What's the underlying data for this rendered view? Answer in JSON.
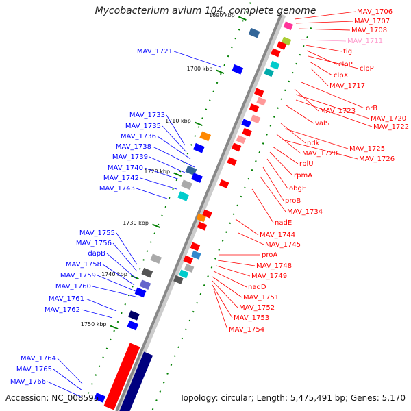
{
  "title": "Mycobacterium avium 104, complete genome",
  "accession_text": "Accession: NC_008595",
  "summary_text": "Topology: circular; Length: 5,475,491 bp; Genes: 5,170",
  "colors": {
    "forward": "#0000ff",
    "reverse": "#ff0000",
    "highlight": "#ff99cc",
    "backbone": "#888888",
    "cds_positive_bar": "#00007f",
    "cds_negative_bar": "#ff0000",
    "tick": "#007f00"
  },
  "ticks": [
    "1690 kbp",
    "1700 kbp",
    "1710 kbp",
    "1720 kbp",
    "1730 kbp",
    "1740 kbp",
    "1750 kbp"
  ],
  "left_labels": [
    "MAV_1721",
    "MAV_1733",
    "MAV_1735",
    "MAV_1736",
    "MAV_1738",
    "MAV_1739",
    "MAV_1740",
    "MAV_1742",
    "MAV_1743",
    "MAV_1755",
    "MAV_1756",
    "dapB",
    "MAV_1758",
    "MAV_1759",
    "MAV_1760",
    "MAV_1761",
    "MAV_1762",
    "MAV_1764",
    "MAV_1765",
    "MAV_1766"
  ],
  "right_labels": [
    "MAV_1706",
    "MAV_1707",
    "MAV_1708",
    "MAV_1711",
    "tig",
    "clpP",
    "clpP",
    "clpX",
    "MAV_1717",
    "orB",
    "MAV_1723",
    "MAV_1720",
    "MAV_1722",
    "valS",
    "ndk",
    "MAV_1725",
    "MAV_1728",
    "MAV_1726",
    "rplU",
    "rpmA",
    "obgE",
    "proB",
    "MAV_1734",
    "nadE",
    "MAV_1744",
    "MAV_1745",
    "proA",
    "MAV_1748",
    "MAV_1749",
    "nadD",
    "MAV_1751",
    "MAV_1752",
    "MAV_1753",
    "MAV_1754"
  ]
}
